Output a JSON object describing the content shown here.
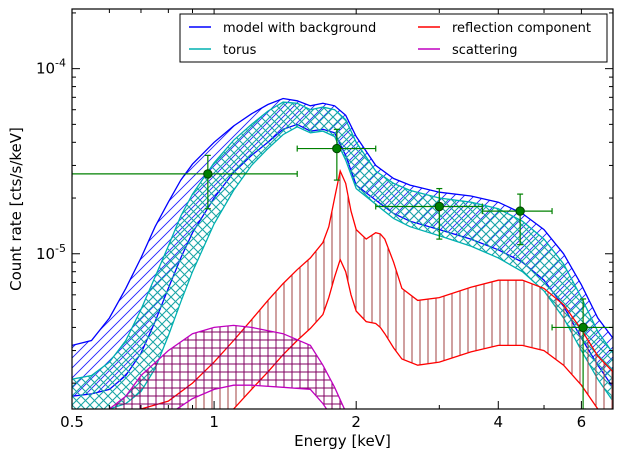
{
  "chart_data": {
    "type": "line",
    "title": "",
    "xlabel": "Energy [keV]",
    "ylabel": "Count rate [cts/s/keV]",
    "x_scale": "log",
    "y_scale": "log",
    "xlim": [
      0.5,
      7.0
    ],
    "ylim": [
      1.45e-06,
      0.00021
    ],
    "x_tick_labels": [
      "0.5",
      "1",
      "2",
      "4",
      "6"
    ],
    "x_ticks": [
      0.5,
      1,
      2,
      4,
      6
    ],
    "y_tick_labels": [
      "10^-5",
      "10^-4"
    ],
    "y_ticks": [
      1e-05,
      0.0001
    ],
    "grid": false,
    "legend": {
      "placement": "top-right",
      "columns": 2
    },
    "series": [
      {
        "name": "model with background",
        "kind": "band",
        "color": "#0000ff",
        "hatch": "diagonal",
        "x": [
          0.5,
          0.55,
          0.6,
          0.65,
          0.7,
          0.75,
          0.8,
          0.85,
          0.9,
          1.0,
          1.1,
          1.2,
          1.3,
          1.4,
          1.5,
          1.6,
          1.7,
          1.8,
          1.9,
          2.0,
          2.2,
          2.4,
          2.6,
          3.0,
          3.5,
          4.0,
          4.5,
          5.0,
          5.5,
          6.0,
          6.5,
          7.0
        ],
        "upper": [
          3.2e-06,
          3.4e-06,
          4.5e-06,
          6.5e-06,
          9.5e-06,
          1.4e-05,
          1.9e-05,
          2.5e-05,
          3.05e-05,
          4e-05,
          4.9e-05,
          5.7e-05,
          6.4e-05,
          6.9e-05,
          6.7e-05,
          6.3e-05,
          6.5e-05,
          6.3e-05,
          5.6e-05,
          4.3e-05,
          3e-05,
          2.55e-05,
          2.35e-05,
          2.15e-05,
          2.05e-05,
          1.9e-05,
          1.65e-05,
          1.35e-05,
          1e-05,
          6.8e-06,
          4.5e-06,
          3.5e-06
        ],
        "lower": [
          1.7e-06,
          1.75e-06,
          1.85e-06,
          2.2e-06,
          2.9e-06,
          4.3e-06,
          6.5e-06,
          9.5e-06,
          1.3e-05,
          2e-05,
          2.75e-05,
          3.4e-05,
          4e-05,
          4.7e-05,
          5e-05,
          4.6e-05,
          4.7e-05,
          4.5e-05,
          3.4e-05,
          2.35e-05,
          1.95e-05,
          1.65e-05,
          1.5e-05,
          1.35e-05,
          1.2e-05,
          1.05e-05,
          9e-06,
          7.2e-06,
          5.2e-06,
          3.5e-06,
          2.5e-06,
          1.9e-06
        ]
      },
      {
        "name": "torus",
        "kind": "band",
        "color": "#00b0b0",
        "hatch": "cross-diagonal",
        "x": [
          0.5,
          0.55,
          0.6,
          0.65,
          0.7,
          0.75,
          0.8,
          0.85,
          0.9,
          1.0,
          1.1,
          1.2,
          1.3,
          1.4,
          1.5,
          1.6,
          1.7,
          1.8,
          1.9,
          2.0,
          2.2,
          2.4,
          2.6,
          3.0,
          3.5,
          4.0,
          4.5,
          5.0,
          5.5,
          6.0,
          6.5,
          7.0
        ],
        "upper": [
          2.1e-06,
          2.2e-06,
          2.6e-06,
          3.4e-06,
          5e-06,
          7.5e-06,
          1.1e-05,
          1.6e-05,
          2.1e-05,
          3.1e-05,
          4.1e-05,
          5e-05,
          5.9e-05,
          6.6e-05,
          6.5e-05,
          6e-05,
          6.2e-05,
          6e-05,
          5.3e-05,
          4e-05,
          2.8e-05,
          2.4e-05,
          2.2e-05,
          2e-05,
          1.9e-05,
          1.75e-05,
          1.5e-05,
          1.2e-05,
          8.8e-06,
          5.8e-06,
          3.8e-06,
          2.9e-06
        ],
        "lower": [
          1.4e-06,
          1.42e-06,
          1.45e-06,
          1.55e-06,
          1.8e-06,
          2.4e-06,
          3.6e-06,
          5.5e-06,
          8e-06,
          1.45e-05,
          2.2e-05,
          3e-05,
          3.7e-05,
          4.4e-05,
          4.85e-05,
          4.5e-05,
          4.6e-05,
          4.3e-05,
          3.2e-05,
          2.25e-05,
          1.85e-05,
          1.55e-05,
          1.4e-05,
          1.25e-05,
          1.1e-05,
          9.5e-06,
          8e-06,
          6.3e-06,
          4.5e-06,
          3e-06,
          2.1e-06,
          1.6e-06
        ]
      },
      {
        "name": "reflection component",
        "kind": "band",
        "color": "#ff0000",
        "hatch": "vertical",
        "x": [
          0.7,
          0.8,
          0.9,
          1.0,
          1.1,
          1.2,
          1.3,
          1.4,
          1.5,
          1.6,
          1.7,
          1.75,
          1.8,
          1.85,
          1.9,
          1.95,
          2.0,
          2.1,
          2.2,
          2.25,
          2.3,
          2.4,
          2.5,
          2.7,
          3.0,
          3.5,
          4.0,
          4.5,
          5.0,
          5.5,
          6.0,
          6.5,
          7.0
        ],
        "upper": [
          1.45e-06,
          1.6e-06,
          2e-06,
          2.6e-06,
          3.4e-06,
          4.4e-06,
          5.6e-06,
          6.9e-06,
          8.2e-06,
          9.5e-06,
          1.15e-05,
          1.4e-05,
          2e-05,
          2.8e-05,
          2.4e-05,
          1.7e-05,
          1.35e-05,
          1.2e-05,
          1.3e-05,
          1.28e-05,
          1.2e-05,
          9e-06,
          6.5e-06,
          5.6e-06,
          5.8e-06,
          6.6e-06,
          7.2e-06,
          7.2e-06,
          6.5e-06,
          5.3e-06,
          3.9e-06,
          2.8e-06,
          2.3e-06
        ],
        "lower": [
          1e-06,
          1e-06,
          1e-06,
          1.05e-06,
          1.45e-06,
          1.85e-06,
          2.3e-06,
          2.85e-06,
          3.4e-06,
          3.95e-06,
          4.7e-06,
          5.8e-06,
          7.5e-06,
          9.3e-06,
          8e-06,
          6e-06,
          4.9e-06,
          4.3e-06,
          4.2e-06,
          4e-06,
          3.7e-06,
          3.1e-06,
          2.7e-06,
          2.5e-06,
          2.6e-06,
          2.95e-06,
          3.2e-06,
          3.2e-06,
          3e-06,
          2.5e-06,
          1.95e-06,
          1.45e-06,
          1.2e-06
        ]
      },
      {
        "name": "scattering",
        "kind": "band",
        "color": "#c000c0",
        "hatch": "grid",
        "x": [
          0.6,
          0.65,
          0.7,
          0.8,
          0.9,
          1.0,
          1.1,
          1.2,
          1.4,
          1.6,
          1.7,
          1.8,
          1.9,
          2.0
        ],
        "upper": [
          1.45e-06,
          1.7e-06,
          2.2e-06,
          3e-06,
          3.7e-06,
          4e-06,
          4.1e-06,
          4e-06,
          3.7e-06,
          3.2e-06,
          2.5e-06,
          1.9e-06,
          1.4e-06,
          1e-06
        ],
        "lower": [
          1e-06,
          1e-06,
          1.1e-06,
          1.35e-06,
          1.65e-06,
          1.85e-06,
          1.95e-06,
          1.95e-06,
          1.9e-06,
          1.85e-06,
          1.55e-06,
          1.25e-06,
          1e-06,
          1e-06
        ]
      },
      {
        "kind": "points",
        "color": "#008000",
        "points": [
          {
            "x": 0.97,
            "y": 2.7e-05,
            "xerr": [
              0.5,
              1.5
            ],
            "yerr": [
              1.75e-05,
              3.4e-05
            ]
          },
          {
            "x": 1.82,
            "y": 3.7e-05,
            "xerr": [
              1.5,
              2.2
            ],
            "yerr": [
              2.5e-05,
              4.7e-05
            ]
          },
          {
            "x": 3.0,
            "y": 1.8e-05,
            "xerr": [
              2.2,
              3.7
            ],
            "yerr": [
              1.2e-05,
              2.25e-05
            ]
          },
          {
            "x": 4.45,
            "y": 1.7e-05,
            "xerr": [
              3.7,
              5.2
            ],
            "yerr": [
              1.12e-05,
              2.1e-05
            ]
          },
          {
            "x": 6.05,
            "y": 4e-06,
            "xerr": [
              5.2,
              7.0
            ],
            "yerr": [
              1.45e-06,
              5.7e-06
            ]
          }
        ]
      }
    ]
  }
}
